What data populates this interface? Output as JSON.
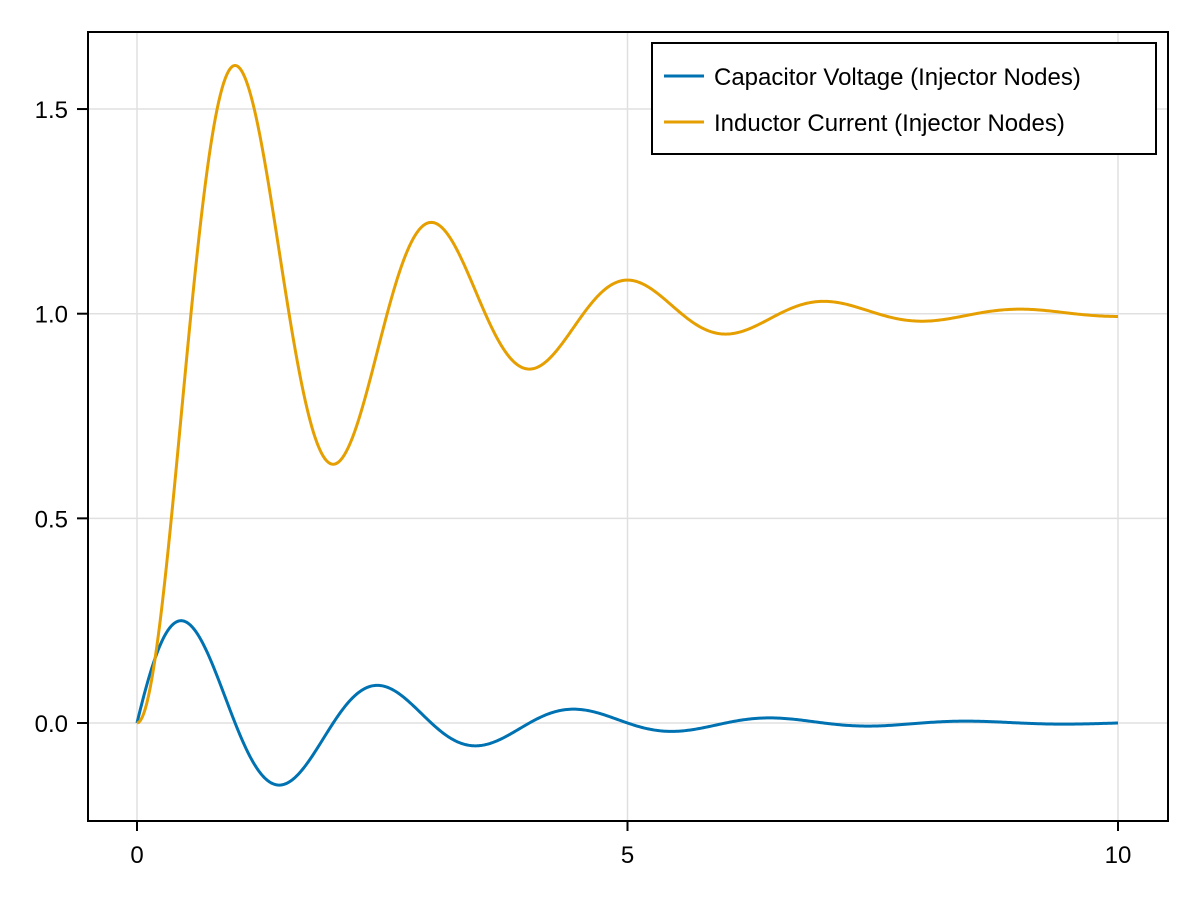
{
  "chart_data": {
    "type": "line",
    "title": "",
    "xlabel": "",
    "ylabel": "",
    "xlim": [
      -0.5,
      10.5
    ],
    "ylim": [
      -0.24,
      1.69
    ],
    "grid": true,
    "legend_position": "top-right",
    "x_ticks": [
      {
        "value": 0,
        "label": "0"
      },
      {
        "value": 5,
        "label": "5"
      },
      {
        "value": 10,
        "label": "10"
      }
    ],
    "y_ticks": [
      {
        "value": 0.0,
        "label": "0.0"
      },
      {
        "value": 0.5,
        "label": "0.5"
      },
      {
        "value": 1.0,
        "label": "1.0"
      },
      {
        "value": 1.5,
        "label": "1.5"
      }
    ],
    "x": [
      0,
      0.25,
      0.45,
      0.5,
      0.75,
      1.0,
      1.25,
      1.46,
      1.5,
      1.75,
      2.0,
      2.25,
      2.47,
      2.5,
      2.75,
      3.0,
      3.25,
      3.47,
      3.5,
      3.75,
      4.0,
      4.25,
      4.47,
      4.5,
      4.75,
      5.0,
      5.25,
      5.48,
      5.5,
      5.75,
      6.0,
      6.25,
      6.49,
      6.5,
      6.75,
      7.0,
      7.25,
      7.48,
      7.5,
      7.75,
      8.0,
      8.25,
      8.48,
      8.5,
      8.75,
      9.0,
      9.25,
      9.5,
      9.75,
      10.0
    ],
    "series": [
      {
        "name": "Capacitor Voltage (Injector Nodes)",
        "color": "#0072b2",
        "model": {
          "amplitude": 0.317,
          "decay": 0.5,
          "omega": 3.14159,
          "form": "A*exp(-a*t)*sin(w*t)"
        },
        "values": [
          0.0,
          0.21,
          0.25,
          0.25,
          0.16,
          0.0,
          -0.12,
          -0.15,
          -0.15,
          -0.1,
          0.0,
          0.07,
          0.09,
          0.09,
          0.06,
          0.0,
          -0.04,
          -0.056,
          -0.055,
          -0.035,
          0.0,
          0.027,
          0.034,
          0.033,
          0.021,
          0.0,
          -0.016,
          -0.02,
          -0.02,
          -0.013,
          0.0,
          0.01,
          0.012,
          0.012,
          0.008,
          0.0,
          -0.006,
          -0.007,
          -0.007,
          -0.005,
          0.0,
          0.004,
          0.005,
          0.005,
          0.003,
          0.0,
          -0.002,
          -0.003,
          -0.002,
          0.0
        ]
      },
      {
        "name": "Inductor Current (Injector Nodes)",
        "color": "#e69f00",
        "model": {
          "decay": 0.5,
          "omega": 3.14159,
          "form": "1-exp(-a*t)*(cos(w*t)+(a/w)*sin(w*t))"
        },
        "values": [
          0.0,
          0.33,
          0.77,
          0.88,
          1.43,
          1.61,
          1.41,
          1.09,
          1.03,
          0.75,
          0.63,
          0.8,
          1.09,
          1.13,
          1.2,
          1.22,
          1.15,
          1.01,
          0.99,
          0.9,
          0.865,
          0.93,
          1.03,
          1.04,
          1.07,
          1.08,
          1.05,
          1.0,
          0.99,
          0.96,
          0.95,
          0.97,
          1.01,
          1.01,
          1.02,
          1.03,
          1.02,
          1.0,
          1.0,
          0.99,
          0.982,
          0.99,
          1.0,
          1.0,
          1.01,
          1.011,
          1.008,
          1.0,
          0.995,
          0.993
        ]
      }
    ],
    "legend": [
      {
        "label": "Capacitor Voltage (Injector Nodes)",
        "color": "#0072b2"
      },
      {
        "label": "Inductor Current (Injector Nodes)",
        "color": "#e69f00"
      }
    ]
  }
}
